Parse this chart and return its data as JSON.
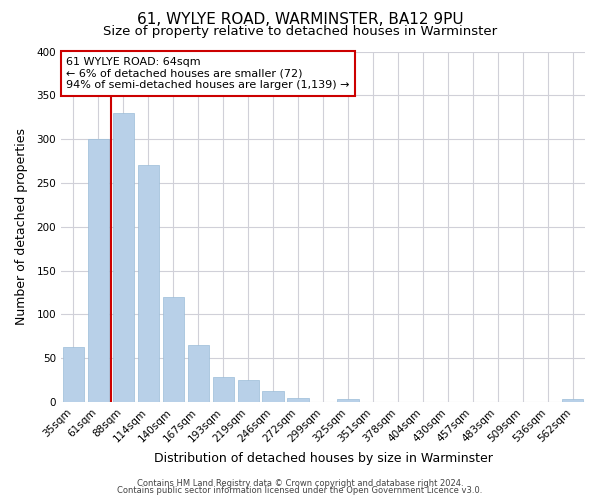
{
  "title": "61, WYLYE ROAD, WARMINSTER, BA12 9PU",
  "subtitle": "Size of property relative to detached houses in Warminster",
  "xlabel": "Distribution of detached houses by size in Warminster",
  "ylabel": "Number of detached properties",
  "bar_labels": [
    "35sqm",
    "61sqm",
    "88sqm",
    "114sqm",
    "140sqm",
    "167sqm",
    "193sqm",
    "219sqm",
    "246sqm",
    "272sqm",
    "299sqm",
    "325sqm",
    "351sqm",
    "378sqm",
    "404sqm",
    "430sqm",
    "457sqm",
    "483sqm",
    "509sqm",
    "536sqm",
    "562sqm"
  ],
  "bar_values": [
    63,
    300,
    330,
    270,
    120,
    65,
    29,
    25,
    13,
    5,
    0,
    3,
    0,
    0,
    0,
    0,
    0,
    0,
    0,
    0,
    3
  ],
  "bar_color": "#b8d0e8",
  "bar_edge_color": "#9bbcd8",
  "red_line_color": "#cc0000",
  "annotation_title": "61 WYLYE ROAD: 64sqm",
  "annotation_line1": "← 6% of detached houses are smaller (72)",
  "annotation_line2": "94% of semi-detached houses are larger (1,139) →",
  "annotation_box_color": "#ffffff",
  "annotation_box_edge": "#cc0000",
  "ylim": [
    0,
    400
  ],
  "yticks": [
    0,
    50,
    100,
    150,
    200,
    250,
    300,
    350,
    400
  ],
  "footer1": "Contains HM Land Registry data © Crown copyright and database right 2024.",
  "footer2": "Contains public sector information licensed under the Open Government Licence v3.0.",
  "background_color": "#ffffff",
  "grid_color": "#d0d0d8",
  "title_fontsize": 11,
  "subtitle_fontsize": 9.5,
  "axis_fontsize": 9,
  "tick_fontsize": 7.5,
  "annotation_fontsize": 8,
  "footer_fontsize": 6
}
